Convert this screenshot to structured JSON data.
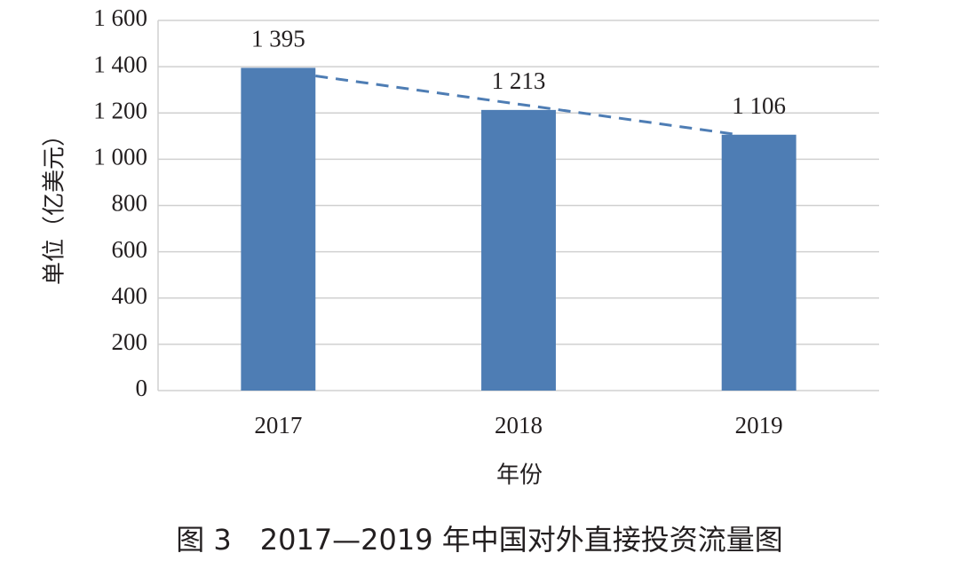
{
  "chart_data": {
    "type": "bar",
    "categories": [
      "2017",
      "2018",
      "2019"
    ],
    "values": [
      1395,
      1213,
      1106
    ],
    "value_labels": [
      "1 395",
      "1 213",
      "1 106"
    ],
    "color": "#4e7db4",
    "trendline": {
      "type": "linear",
      "style": "dashed",
      "color": "#4e7db4"
    },
    "ylim": [
      0,
      1600
    ],
    "yticks": [
      0,
      200,
      400,
      600,
      800,
      {
        "value": 1000,
        "label": "1 000"
      },
      {
        "value": 1200,
        "label": "1 200"
      },
      {
        "value": 1400,
        "label": "1 400"
      },
      {
        "value": 1600,
        "label": "1 600"
      }
    ],
    "ylabel": "单位（亿美元）",
    "xlabel": "年份",
    "grid": true,
    "caption": "图 3　2017—2019 年中国对外直接投资流量图"
  }
}
